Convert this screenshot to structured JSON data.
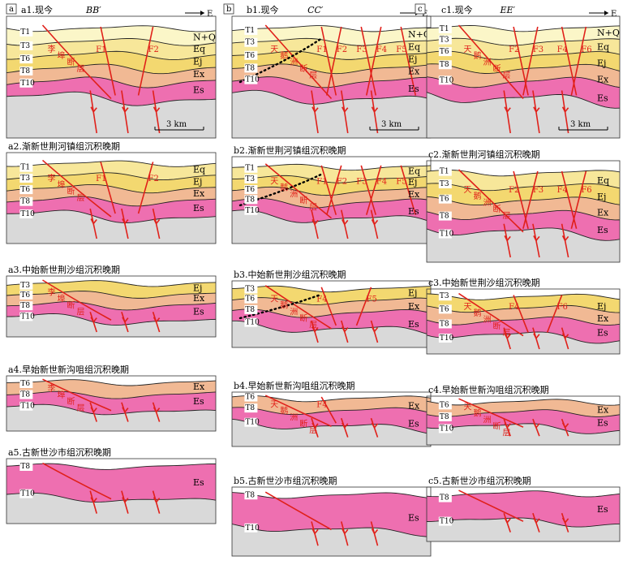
{
  "columns": [
    {
      "letter": "a",
      "section": "BB′",
      "panels": [
        {
          "title": "a1.现今",
          "faults": [
            "F1",
            "F2"
          ],
          "horizons": [
            "T1",
            "T3",
            "T6",
            "T8",
            "T10"
          ],
          "units": [
            "N+Q",
            "Eq",
            "Ej",
            "Ex",
            "Es"
          ],
          "fault_name": "李埠断层"
        },
        {
          "title": "a2.渐新世荆河镇组沉积晚期",
          "faults": [
            "F1",
            "F2"
          ],
          "horizons": [
            "T1",
            "T3",
            "T6",
            "T8",
            "T10"
          ],
          "units": [
            "Eq",
            "Ej",
            "Ex",
            "Es"
          ],
          "fault_name": "李埠断层"
        },
        {
          "title": "a3.中始新世荆沙组沉积晚期",
          "horizons": [
            "T3",
            "T6",
            "T8",
            "T10"
          ],
          "units": [
            "Ej",
            "Ex",
            "Es"
          ],
          "fault_name": "李埠断层"
        },
        {
          "title": "a4.早始新世新沟咀组沉积晚期",
          "horizons": [
            "T6",
            "T8",
            "T10"
          ],
          "units": [
            "Ex",
            "Es"
          ],
          "fault_name": "李埠断层"
        },
        {
          "title": "a5.古新世沙市组沉积晚期",
          "horizons": [
            "T8",
            "T10"
          ],
          "units": [
            "Es"
          ]
        }
      ]
    },
    {
      "letter": "b",
      "section": "CC′",
      "panels": [
        {
          "title": "b1.现今",
          "faults": [
            "F1",
            "F2",
            "F3",
            "F4",
            "F5"
          ],
          "horizons": [
            "T1",
            "T3",
            "T6",
            "T8",
            "T10"
          ],
          "units": [
            "N+Q",
            "Eq",
            "Ej",
            "Ex",
            "Es"
          ],
          "fault_name": "天鹅洲断层"
        },
        {
          "title": "b2.渐新世荆河镇组沉积晚期",
          "faults": [
            "F1",
            "F2",
            "F3",
            "F4",
            "F5"
          ],
          "horizons": [
            "T1",
            "T3",
            "T6",
            "T8",
            "T10"
          ],
          "units": [
            "Eq",
            "Ej",
            "Ex",
            "Es"
          ],
          "fault_name": "天鹅洲断层"
        },
        {
          "title": "b3.中始新世荆沙组沉积晚期",
          "faults": [
            "F4",
            "F5"
          ],
          "horizons": [
            "T3",
            "T6",
            "T8",
            "T10"
          ],
          "units": [
            "Ej",
            "Ex",
            "Es"
          ],
          "fault_name": "天鹅洲断层"
        },
        {
          "title": "b4.早始新世新沟咀组沉积晚期",
          "faults": [
            "F4"
          ],
          "horizons": [
            "T6",
            "T8",
            "T10"
          ],
          "units": [
            "Ex",
            "Es"
          ],
          "fault_name": "天鹅洲断层"
        },
        {
          "title": "b5.古新世沙市组沉积晚期",
          "horizons": [
            "T8",
            "T10"
          ],
          "units": [
            "Es"
          ]
        }
      ]
    },
    {
      "letter": "c",
      "section": "EE′",
      "panels": [
        {
          "title": "c1.现今",
          "faults": [
            "F2",
            "F3",
            "F4",
            "F6"
          ],
          "horizons": [
            "T1",
            "T3",
            "T6",
            "T8",
            "T10"
          ],
          "units": [
            "N+Q",
            "Eq",
            "Ej",
            "Ex",
            "Es"
          ],
          "fault_name": "天鹅洲断层"
        },
        {
          "title": "c2.渐新世荆河镇组沉积晚期",
          "faults": [
            "F2",
            "F3",
            "F4",
            "F6"
          ],
          "horizons": [
            "T1",
            "T3",
            "T6",
            "T8",
            "T10"
          ],
          "units": [
            "Eq",
            "Ej",
            "Ex",
            "Es"
          ],
          "fault_name": "天鹅洲断层"
        },
        {
          "title": "c3.中始新世荆沙组沉积晚期",
          "faults": [
            "F4",
            "F6"
          ],
          "horizons": [
            "T3",
            "T6",
            "T8",
            "T10"
          ],
          "units": [
            "Ej",
            "Ex",
            "Es"
          ],
          "fault_name": "天鹅洲断层"
        },
        {
          "title": "c4.早始新世新沟咀组沉积晚期",
          "horizons": [
            "T6",
            "T8",
            "T10"
          ],
          "units": [
            "Ex",
            "Es"
          ],
          "fault_name": "天鹅洲断层"
        },
        {
          "title": "c5.古新世沙市组沉积晚期",
          "horizons": [
            "T8",
            "T10"
          ],
          "units": [
            "Es"
          ]
        }
      ]
    }
  ],
  "direction_label": "E",
  "scale_label": "3 km",
  "colors": {
    "nq": "#fbf6c8",
    "eq": "#f7e79a",
    "ej": "#f3d870",
    "ex": "#f1b994",
    "es": "#ee6fb0",
    "base": "#d9d9d9",
    "fault": "#e0201a"
  }
}
